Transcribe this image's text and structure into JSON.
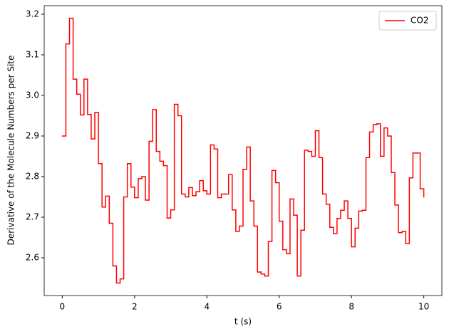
{
  "chart_data": {
    "type": "step",
    "xlabel": "t (s)",
    "ylabel": "Derivative of the Molecule Numbers per Site",
    "x": [
      0,
      0.1,
      0.2,
      0.3,
      0.4,
      0.5,
      0.6,
      0.7,
      0.8,
      0.9,
      1,
      1.1,
      1.2,
      1.3,
      1.4,
      1.5,
      1.6,
      1.7,
      1.8,
      1.9,
      2,
      2.1,
      2.2,
      2.3,
      2.4,
      2.5,
      2.6,
      2.7,
      2.8,
      2.9,
      3,
      3.1,
      3.2,
      3.3,
      3.4,
      3.5,
      3.6,
      3.7,
      3.8,
      3.9,
      4,
      4.1,
      4.2,
      4.3,
      4.4,
      4.5,
      4.6,
      4.7,
      4.8,
      4.9,
      5,
      5.1,
      5.2,
      5.3,
      5.4,
      5.5,
      5.6,
      5.7,
      5.8,
      5.9,
      6,
      6.1,
      6.2,
      6.3,
      6.4,
      6.5,
      6.6,
      6.7,
      6.8,
      6.9,
      7,
      7.1,
      7.2,
      7.3,
      7.4,
      7.5,
      7.6,
      7.7,
      7.8,
      7.9,
      8,
      8.1,
      8.2,
      8.3,
      8.4,
      8.5,
      8.6,
      8.7,
      8.8,
      8.9,
      9,
      9.1,
      9.2,
      9.3,
      9.4,
      9.5,
      9.6,
      9.7,
      9.8,
      9.9,
      10
    ],
    "series": [
      {
        "name": "CO2",
        "color": "#ff0000",
        "values": [
          2.9,
          3.127,
          3.19,
          3.04,
          3.003,
          2.952,
          3.04,
          2.953,
          2.893,
          2.958,
          2.832,
          2.725,
          2.752,
          2.685,
          2.58,
          2.538,
          2.548,
          2.75,
          2.832,
          2.774,
          2.748,
          2.795,
          2.8,
          2.742,
          2.887,
          2.965,
          2.862,
          2.838,
          2.827,
          2.698,
          2.718,
          2.978,
          2.95,
          2.757,
          2.75,
          2.773,
          2.753,
          2.763,
          2.79,
          2.765,
          2.757,
          2.878,
          2.868,
          2.748,
          2.757,
          2.757,
          2.805,
          2.718,
          2.665,
          2.678,
          2.818,
          2.873,
          2.74,
          2.678,
          2.565,
          2.56,
          2.555,
          2.64,
          2.815,
          2.785,
          2.69,
          2.62,
          2.61,
          2.745,
          2.705,
          2.555,
          2.668,
          2.865,
          2.862,
          2.85,
          2.913,
          2.847,
          2.757,
          2.732,
          2.675,
          2.66,
          2.697,
          2.717,
          2.74,
          2.697,
          2.627,
          2.673,
          2.715,
          2.717,
          2.847,
          2.91,
          2.928,
          2.93,
          2.85,
          2.92,
          2.9,
          2.81,
          2.73,
          2.662,
          2.665,
          2.635,
          2.797,
          2.858,
          2.858,
          2.77,
          2.75
        ]
      }
    ],
    "xlim": [
      -0.5,
      10.5
    ],
    "ylim": [
      2.507,
      3.221
    ],
    "xticks": [
      0,
      2,
      4,
      6,
      8,
      10
    ],
    "yticks": [
      2.6,
      2.7,
      2.8,
      2.9,
      {
        "value": 3,
        "label": "3.0"
      },
      3.1,
      3.2
    ],
    "legend": "upper right"
  }
}
